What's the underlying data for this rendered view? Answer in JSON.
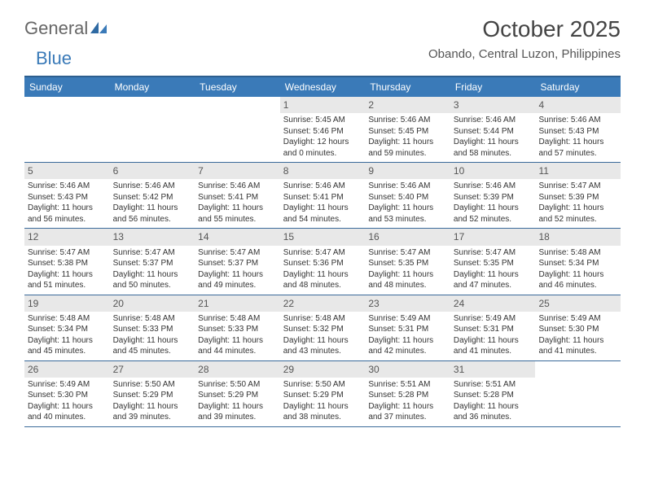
{
  "brand": {
    "part1": "General",
    "part2": "Blue"
  },
  "title": "October 2025",
  "location": "Obando, Central Luzon, Philippines",
  "colors": {
    "header_bg": "#3a7ab8",
    "header_border_top": "#2d5f8f",
    "row_border": "#3a6a9a",
    "daynum_bg": "#e8e8e8",
    "brand_blue": "#3a7ab8",
    "text": "#333333"
  },
  "dow": [
    "Sunday",
    "Monday",
    "Tuesday",
    "Wednesday",
    "Thursday",
    "Friday",
    "Saturday"
  ],
  "weeks": [
    [
      {
        "n": "",
        "sr": "",
        "ss": "",
        "dl": ""
      },
      {
        "n": "",
        "sr": "",
        "ss": "",
        "dl": ""
      },
      {
        "n": "",
        "sr": "",
        "ss": "",
        "dl": ""
      },
      {
        "n": "1",
        "sr": "Sunrise: 5:45 AM",
        "ss": "Sunset: 5:46 PM",
        "dl": "Daylight: 12 hours and 0 minutes."
      },
      {
        "n": "2",
        "sr": "Sunrise: 5:46 AM",
        "ss": "Sunset: 5:45 PM",
        "dl": "Daylight: 11 hours and 59 minutes."
      },
      {
        "n": "3",
        "sr": "Sunrise: 5:46 AM",
        "ss": "Sunset: 5:44 PM",
        "dl": "Daylight: 11 hours and 58 minutes."
      },
      {
        "n": "4",
        "sr": "Sunrise: 5:46 AM",
        "ss": "Sunset: 5:43 PM",
        "dl": "Daylight: 11 hours and 57 minutes."
      }
    ],
    [
      {
        "n": "5",
        "sr": "Sunrise: 5:46 AM",
        "ss": "Sunset: 5:43 PM",
        "dl": "Daylight: 11 hours and 56 minutes."
      },
      {
        "n": "6",
        "sr": "Sunrise: 5:46 AM",
        "ss": "Sunset: 5:42 PM",
        "dl": "Daylight: 11 hours and 56 minutes."
      },
      {
        "n": "7",
        "sr": "Sunrise: 5:46 AM",
        "ss": "Sunset: 5:41 PM",
        "dl": "Daylight: 11 hours and 55 minutes."
      },
      {
        "n": "8",
        "sr": "Sunrise: 5:46 AM",
        "ss": "Sunset: 5:41 PM",
        "dl": "Daylight: 11 hours and 54 minutes."
      },
      {
        "n": "9",
        "sr": "Sunrise: 5:46 AM",
        "ss": "Sunset: 5:40 PM",
        "dl": "Daylight: 11 hours and 53 minutes."
      },
      {
        "n": "10",
        "sr": "Sunrise: 5:46 AM",
        "ss": "Sunset: 5:39 PM",
        "dl": "Daylight: 11 hours and 52 minutes."
      },
      {
        "n": "11",
        "sr": "Sunrise: 5:47 AM",
        "ss": "Sunset: 5:39 PM",
        "dl": "Daylight: 11 hours and 52 minutes."
      }
    ],
    [
      {
        "n": "12",
        "sr": "Sunrise: 5:47 AM",
        "ss": "Sunset: 5:38 PM",
        "dl": "Daylight: 11 hours and 51 minutes."
      },
      {
        "n": "13",
        "sr": "Sunrise: 5:47 AM",
        "ss": "Sunset: 5:37 PM",
        "dl": "Daylight: 11 hours and 50 minutes."
      },
      {
        "n": "14",
        "sr": "Sunrise: 5:47 AM",
        "ss": "Sunset: 5:37 PM",
        "dl": "Daylight: 11 hours and 49 minutes."
      },
      {
        "n": "15",
        "sr": "Sunrise: 5:47 AM",
        "ss": "Sunset: 5:36 PM",
        "dl": "Daylight: 11 hours and 48 minutes."
      },
      {
        "n": "16",
        "sr": "Sunrise: 5:47 AM",
        "ss": "Sunset: 5:35 PM",
        "dl": "Daylight: 11 hours and 48 minutes."
      },
      {
        "n": "17",
        "sr": "Sunrise: 5:47 AM",
        "ss": "Sunset: 5:35 PM",
        "dl": "Daylight: 11 hours and 47 minutes."
      },
      {
        "n": "18",
        "sr": "Sunrise: 5:48 AM",
        "ss": "Sunset: 5:34 PM",
        "dl": "Daylight: 11 hours and 46 minutes."
      }
    ],
    [
      {
        "n": "19",
        "sr": "Sunrise: 5:48 AM",
        "ss": "Sunset: 5:34 PM",
        "dl": "Daylight: 11 hours and 45 minutes."
      },
      {
        "n": "20",
        "sr": "Sunrise: 5:48 AM",
        "ss": "Sunset: 5:33 PM",
        "dl": "Daylight: 11 hours and 45 minutes."
      },
      {
        "n": "21",
        "sr": "Sunrise: 5:48 AM",
        "ss": "Sunset: 5:33 PM",
        "dl": "Daylight: 11 hours and 44 minutes."
      },
      {
        "n": "22",
        "sr": "Sunrise: 5:48 AM",
        "ss": "Sunset: 5:32 PM",
        "dl": "Daylight: 11 hours and 43 minutes."
      },
      {
        "n": "23",
        "sr": "Sunrise: 5:49 AM",
        "ss": "Sunset: 5:31 PM",
        "dl": "Daylight: 11 hours and 42 minutes."
      },
      {
        "n": "24",
        "sr": "Sunrise: 5:49 AM",
        "ss": "Sunset: 5:31 PM",
        "dl": "Daylight: 11 hours and 41 minutes."
      },
      {
        "n": "25",
        "sr": "Sunrise: 5:49 AM",
        "ss": "Sunset: 5:30 PM",
        "dl": "Daylight: 11 hours and 41 minutes."
      }
    ],
    [
      {
        "n": "26",
        "sr": "Sunrise: 5:49 AM",
        "ss": "Sunset: 5:30 PM",
        "dl": "Daylight: 11 hours and 40 minutes."
      },
      {
        "n": "27",
        "sr": "Sunrise: 5:50 AM",
        "ss": "Sunset: 5:29 PM",
        "dl": "Daylight: 11 hours and 39 minutes."
      },
      {
        "n": "28",
        "sr": "Sunrise: 5:50 AM",
        "ss": "Sunset: 5:29 PM",
        "dl": "Daylight: 11 hours and 39 minutes."
      },
      {
        "n": "29",
        "sr": "Sunrise: 5:50 AM",
        "ss": "Sunset: 5:29 PM",
        "dl": "Daylight: 11 hours and 38 minutes."
      },
      {
        "n": "30",
        "sr": "Sunrise: 5:51 AM",
        "ss": "Sunset: 5:28 PM",
        "dl": "Daylight: 11 hours and 37 minutes."
      },
      {
        "n": "31",
        "sr": "Sunrise: 5:51 AM",
        "ss": "Sunset: 5:28 PM",
        "dl": "Daylight: 11 hours and 36 minutes."
      },
      {
        "n": "",
        "sr": "",
        "ss": "",
        "dl": ""
      }
    ]
  ]
}
